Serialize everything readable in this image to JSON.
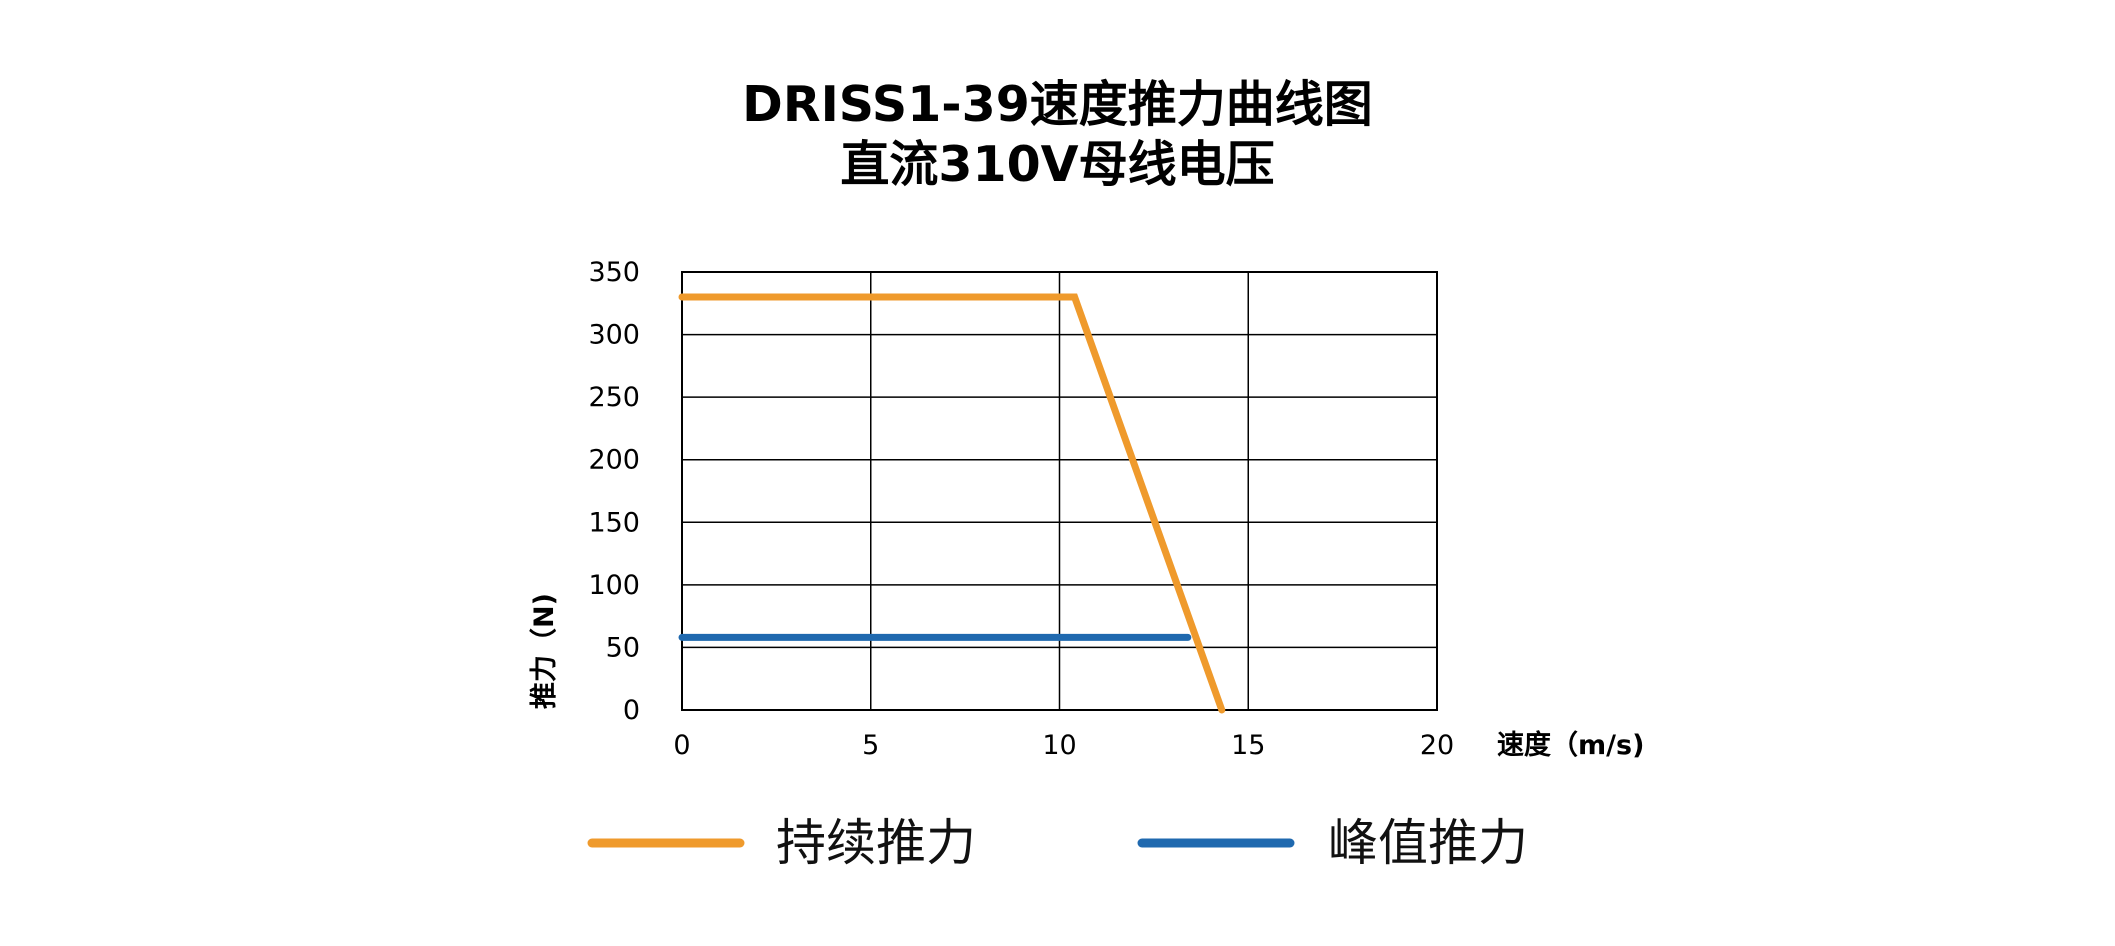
{
  "chart_data": {
    "type": "line",
    "title": "DRISS1-39速度推力曲线图",
    "subtitle": "直流310V母线电压",
    "xlabel": "速度（m/s)",
    "ylabel": "推力（N)",
    "xlim": [
      0,
      20
    ],
    "ylim": [
      0,
      350
    ],
    "x_ticks": [
      0,
      5,
      10,
      15,
      20
    ],
    "y_ticks": [
      0,
      50,
      100,
      150,
      200,
      250,
      300,
      350
    ],
    "grid": true,
    "legend_position": "bottom",
    "series": [
      {
        "name": "持续推力",
        "color": "#EF9A2C",
        "x": [
          0,
          10.4,
          14.3
        ],
        "y": [
          330,
          330,
          0
        ]
      },
      {
        "name": "峰值推力",
        "color": "#1F69AF",
        "x": [
          0,
          13.4
        ],
        "y": [
          58,
          58
        ]
      }
    ]
  }
}
